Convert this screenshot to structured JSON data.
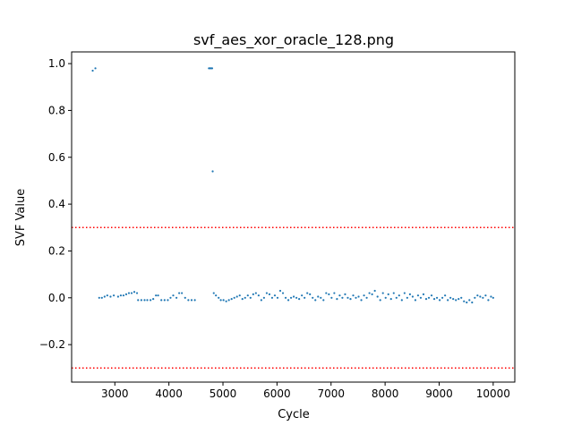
{
  "chart_data": {
    "type": "scatter",
    "title": "svf_aes_xor_oracle_128.png",
    "xlabel": "Cycle",
    "ylabel": "SVF Value",
    "xlim": [
      2200,
      10400
    ],
    "ylim": [
      -0.36,
      1.05
    ],
    "x_ticks": [
      3000,
      4000,
      5000,
      6000,
      7000,
      8000,
      9000,
      10000
    ],
    "y_ticks": [
      -0.2,
      0.0,
      0.2,
      0.4,
      0.6,
      0.8,
      1.0
    ],
    "x_tick_labels": [
      "3000",
      "4000",
      "5000",
      "6000",
      "7000",
      "8000",
      "9000",
      "10000"
    ],
    "y_tick_labels": [
      "−0.2",
      "0.0",
      "0.2",
      "0.4",
      "0.6",
      "0.8",
      "1.0"
    ],
    "grid": false,
    "series_color": "#1f77b4",
    "threshold_color": "#ff0000",
    "thresholds": [
      {
        "name": "upper-threshold",
        "y": 0.3,
        "style": "dotted"
      },
      {
        "name": "lower-threshold",
        "y": -0.3,
        "style": "dotted"
      }
    ],
    "series": [
      {
        "name": "svf",
        "points": [
          [
            2590,
            0.97
          ],
          [
            2640,
            0.98
          ],
          [
            4740,
            0.98
          ],
          [
            4760,
            0.98
          ],
          [
            4780,
            0.98
          ],
          [
            4800,
            0.98
          ],
          [
            4810,
            0.54
          ],
          [
            2710,
            0.0
          ],
          [
            2760,
            0.0
          ],
          [
            2810,
            0.005
          ],
          [
            2860,
            0.01
          ],
          [
            2920,
            0.005
          ],
          [
            2980,
            0.01
          ],
          [
            3060,
            0.005
          ],
          [
            3110,
            0.01
          ],
          [
            3160,
            0.01
          ],
          [
            3210,
            0.015
          ],
          [
            3260,
            0.02
          ],
          [
            3310,
            0.02
          ],
          [
            3360,
            0.025
          ],
          [
            3410,
            0.02
          ],
          [
            3430,
            -0.01
          ],
          [
            3490,
            -0.01
          ],
          [
            3550,
            -0.01
          ],
          [
            3600,
            -0.01
          ],
          [
            3660,
            -0.01
          ],
          [
            3710,
            -0.005
          ],
          [
            3760,
            0.01
          ],
          [
            3800,
            0.01
          ],
          [
            3860,
            -0.01
          ],
          [
            3920,
            -0.01
          ],
          [
            3980,
            -0.01
          ],
          [
            4030,
            0.0
          ],
          [
            4080,
            0.01
          ],
          [
            4140,
            0.0
          ],
          [
            4190,
            0.02
          ],
          [
            4240,
            0.02
          ],
          [
            4300,
            0.0
          ],
          [
            4360,
            -0.01
          ],
          [
            4420,
            -0.01
          ],
          [
            4480,
            -0.01
          ],
          [
            4830,
            0.02
          ],
          [
            4870,
            0.01
          ],
          [
            4920,
            0.0
          ],
          [
            4960,
            -0.01
          ],
          [
            5010,
            -0.01
          ],
          [
            5060,
            -0.015
          ],
          [
            5110,
            -0.01
          ],
          [
            5160,
            -0.005
          ],
          [
            5210,
            0.0
          ],
          [
            5260,
            0.005
          ],
          [
            5310,
            0.01
          ],
          [
            5360,
            -0.005
          ],
          [
            5410,
            0.0
          ],
          [
            5460,
            0.01
          ],
          [
            5510,
            0.0
          ],
          [
            5560,
            0.015
          ],
          [
            5610,
            0.02
          ],
          [
            5660,
            0.01
          ],
          [
            5710,
            -0.01
          ],
          [
            5760,
            0.0
          ],
          [
            5810,
            0.02
          ],
          [
            5860,
            0.015
          ],
          [
            5910,
            0.0
          ],
          [
            5960,
            0.01
          ],
          [
            6010,
            0.0
          ],
          [
            6060,
            0.03
          ],
          [
            6110,
            0.02
          ],
          [
            6160,
            0.0
          ],
          [
            6210,
            -0.01
          ],
          [
            6260,
            0.0
          ],
          [
            6310,
            0.005
          ],
          [
            6360,
            0.0
          ],
          [
            6410,
            -0.005
          ],
          [
            6460,
            0.01
          ],
          [
            6510,
            0.0
          ],
          [
            6560,
            0.02
          ],
          [
            6610,
            0.015
          ],
          [
            6660,
            0.0
          ],
          [
            6710,
            -0.01
          ],
          [
            6760,
            0.005
          ],
          [
            6810,
            0.0
          ],
          [
            6860,
            -0.01
          ],
          [
            6910,
            0.02
          ],
          [
            6960,
            0.015
          ],
          [
            7010,
            0.0
          ],
          [
            7060,
            0.02
          ],
          [
            7110,
            -0.005
          ],
          [
            7160,
            0.01
          ],
          [
            7210,
            0.0
          ],
          [
            7260,
            0.015
          ],
          [
            7310,
            0.0
          ],
          [
            7360,
            -0.005
          ],
          [
            7410,
            0.01
          ],
          [
            7460,
            0.0
          ],
          [
            7510,
            0.005
          ],
          [
            7560,
            -0.01
          ],
          [
            7610,
            0.01
          ],
          [
            7660,
            0.0
          ],
          [
            7710,
            0.02
          ],
          [
            7760,
            0.015
          ],
          [
            7810,
            0.03
          ],
          [
            7860,
            0.005
          ],
          [
            7910,
            -0.01
          ],
          [
            7960,
            0.02
          ],
          [
            8010,
            0.0
          ],
          [
            8060,
            0.015
          ],
          [
            8110,
            -0.005
          ],
          [
            8160,
            0.02
          ],
          [
            8210,
            0.0
          ],
          [
            8260,
            0.01
          ],
          [
            8310,
            -0.01
          ],
          [
            8360,
            0.02
          ],
          [
            8410,
            0.0
          ],
          [
            8460,
            0.015
          ],
          [
            8510,
            0.005
          ],
          [
            8560,
            -0.01
          ],
          [
            8610,
            0.01
          ],
          [
            8660,
            0.0
          ],
          [
            8710,
            0.015
          ],
          [
            8760,
            -0.005
          ],
          [
            8810,
            0.0
          ],
          [
            8860,
            0.01
          ],
          [
            8910,
            -0.005
          ],
          [
            8960,
            0.0
          ],
          [
            9010,
            -0.01
          ],
          [
            9060,
            0.0
          ],
          [
            9110,
            0.01
          ],
          [
            9160,
            -0.01
          ],
          [
            9210,
            0.0
          ],
          [
            9260,
            -0.005
          ],
          [
            9310,
            -0.01
          ],
          [
            9360,
            -0.005
          ],
          [
            9410,
            0.0
          ],
          [
            9460,
            -0.015
          ],
          [
            9510,
            -0.02
          ],
          [
            9560,
            -0.01
          ],
          [
            9610,
            -0.02
          ],
          [
            9660,
            0.0
          ],
          [
            9710,
            0.01
          ],
          [
            9760,
            0.005
          ],
          [
            9810,
            0.0
          ],
          [
            9860,
            0.01
          ],
          [
            9910,
            -0.01
          ],
          [
            9960,
            0.005
          ],
          [
            10000,
            0.0
          ]
        ]
      }
    ]
  }
}
